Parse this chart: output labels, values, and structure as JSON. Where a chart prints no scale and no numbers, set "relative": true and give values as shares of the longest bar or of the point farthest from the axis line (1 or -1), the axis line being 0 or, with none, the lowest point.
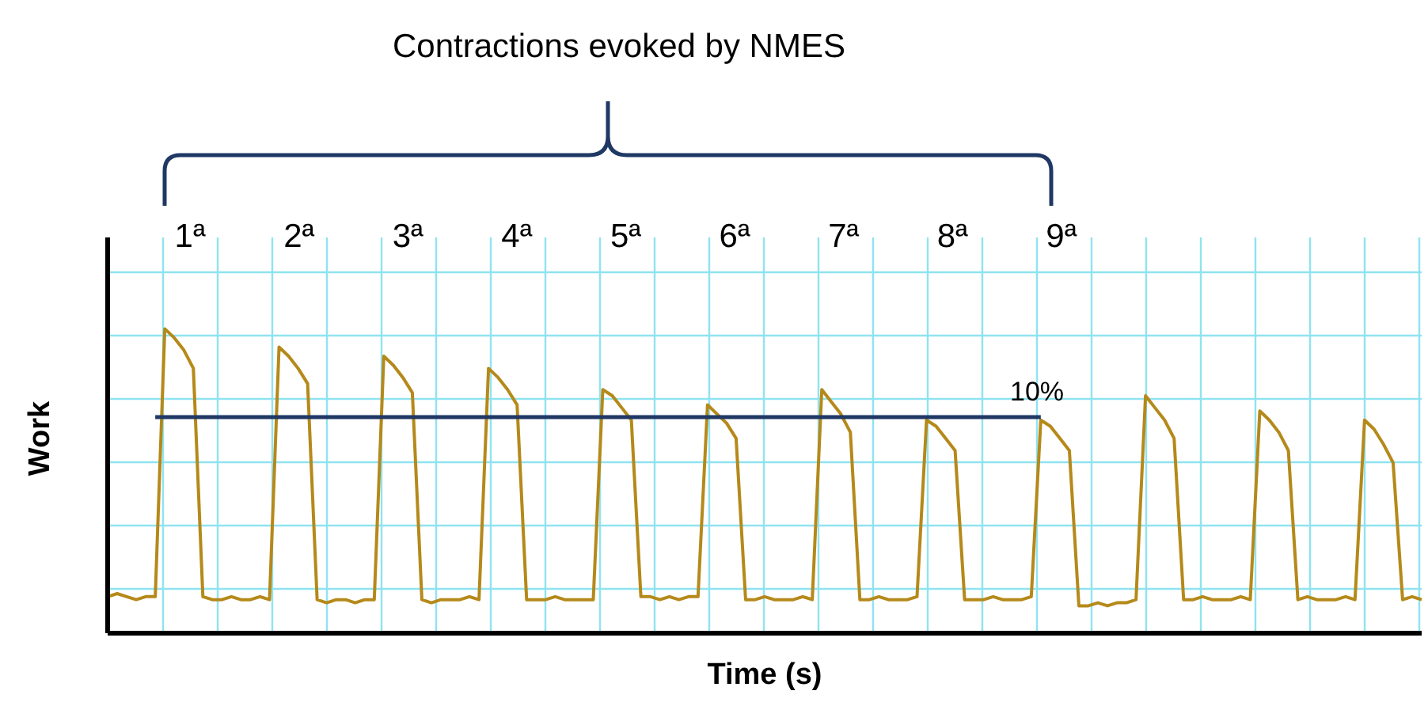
{
  "chart_data": {
    "type": "line",
    "title": "Contractions evoked by NMES",
    "xlabel": "Time (s)",
    "ylabel": "Work",
    "relative": true,
    "grid": true,
    "marker": "none",
    "annotations": [
      "1ª",
      "2ª",
      "3ª",
      "4ª",
      "5ª",
      "6ª",
      "7ª",
      "8ª",
      "9ª",
      "10%"
    ],
    "categories": [
      null,
      null,
      null,
      null,
      null,
      null,
      null,
      null,
      null,
      null,
      null,
      null,
      null,
      null,
      null,
      null,
      null,
      null,
      null,
      null,
      null,
      null,
      null,
      null,
      null,
      null,
      null,
      null,
      null,
      null,
      null,
      null,
      null,
      null,
      null,
      null,
      null,
      null,
      null,
      null,
      null,
      null,
      null,
      null,
      null,
      null,
      null,
      null,
      null,
      null,
      null,
      null,
      null,
      null,
      null,
      null,
      null,
      null,
      null,
      null,
      null,
      null,
      null,
      null,
      null,
      null,
      null,
      null,
      null,
      null,
      null,
      null,
      null,
      null,
      null,
      null,
      null,
      null,
      null,
      null,
      null,
      null,
      null,
      null,
      null,
      null,
      null,
      null,
      null,
      null,
      null,
      null,
      null,
      null,
      null,
      null,
      null,
      null,
      null,
      null,
      null,
      null,
      null,
      null,
      null,
      null,
      null,
      null,
      null,
      null,
      null,
      null,
      null,
      null,
      null,
      null,
      null,
      null,
      null,
      null,
      null,
      null,
      null,
      null,
      null,
      null,
      null,
      null,
      null,
      null,
      null,
      null,
      null,
      null,
      null,
      null,
      null,
      null,
      null
    ],
    "series": [
      {
        "color": "#b5891a",
        "values": [
          0.12,
          0.13,
          0.12,
          0.11,
          0.12,
          0.12,
          1,
          0.97,
          0.93,
          0.87,
          0.12,
          0.11,
          0.11,
          0.12,
          0.11,
          0.11,
          0.12,
          0.11,
          0.94,
          0.91,
          0.87,
          0.82,
          0.11,
          0.1,
          0.11,
          0.11,
          0.1,
          0.11,
          0.11,
          0.91,
          0.88,
          0.84,
          0.79,
          0.11,
          0.1,
          0.11,
          0.11,
          0.11,
          0.12,
          0.11,
          0.87,
          0.84,
          0.8,
          0.75,
          0.11,
          0.11,
          0.11,
          0.12,
          0.11,
          0.11,
          0.11,
          0.11,
          0.8,
          0.78,
          0.74,
          0.7,
          0.12,
          0.12,
          0.11,
          0.12,
          0.11,
          0.12,
          0.12,
          0.75,
          0.72,
          0.69,
          0.64,
          0.11,
          0.11,
          0.12,
          0.11,
          0.11,
          0.11,
          0.12,
          0.11,
          0.8,
          0.76,
          0.72,
          0.66,
          0.11,
          0.11,
          0.12,
          0.11,
          0.11,
          0.11,
          0.12,
          0.7,
          0.68,
          0.64,
          0.6,
          0.11,
          0.11,
          0.11,
          0.12,
          0.11,
          0.11,
          0.11,
          0.12,
          0.7,
          0.68,
          0.64,
          0.6,
          0.09,
          0.09,
          0.1,
          0.09,
          0.1,
          0.1,
          0.11,
          0.78,
          0.74,
          0.7,
          0.64,
          0.11,
          0.11,
          0.12,
          0.11,
          0.11,
          0.11,
          0.12,
          0.11,
          0.73,
          0.7,
          0.66,
          0.6,
          0.11,
          0.12,
          0.11,
          0.11,
          0.11,
          0.12,
          0.11,
          0.7,
          0.67,
          0.62,
          0.56,
          0.11,
          0.12,
          0.11
        ]
      },
      {
        "color": "#1f3864",
        "values": [
          null,
          null,
          null,
          null,
          null,
          0.71,
          0.71,
          0.71,
          0.71,
          0.71,
          0.71,
          0.71,
          0.71,
          0.71,
          0.71,
          0.71,
          0.71,
          0.71,
          0.71,
          0.71,
          0.71,
          0.71,
          0.71,
          0.71,
          0.71,
          0.71,
          0.71,
          0.71,
          0.71,
          0.71,
          0.71,
          0.71,
          0.71,
          0.71,
          0.71,
          0.71,
          0.71,
          0.71,
          0.71,
          0.71,
          0.71,
          0.71,
          0.71,
          0.71,
          0.71,
          0.71,
          0.71,
          0.71,
          0.71,
          0.71,
          0.71,
          0.71,
          0.71,
          0.71,
          0.71,
          0.71,
          0.71,
          0.71,
          0.71,
          0.71,
          0.71,
          0.71,
          0.71,
          0.71,
          0.71,
          0.71,
          0.71,
          0.71,
          0.71,
          0.71,
          0.71,
          0.71,
          0.71,
          0.71,
          0.71,
          0.71,
          0.71,
          0.71,
          0.71,
          0.71,
          0.71,
          0.71,
          0.71,
          0.71,
          0.71,
          0.71,
          0.71,
          0.71,
          0.71,
          0.71,
          0.71,
          0.71,
          0.71,
          0.71,
          0.71,
          0.71,
          0.71,
          0.71,
          0.71,
          null,
          null,
          null,
          null,
          null,
          null,
          null,
          null,
          null,
          null,
          null,
          null,
          null,
          null,
          null,
          null,
          null,
          null,
          null,
          null,
          null,
          null,
          null,
          null,
          null,
          null,
          null,
          null,
          null,
          null,
          null,
          null,
          null,
          null,
          null,
          null,
          null,
          null,
          null,
          null
        ]
      }
    ]
  }
}
